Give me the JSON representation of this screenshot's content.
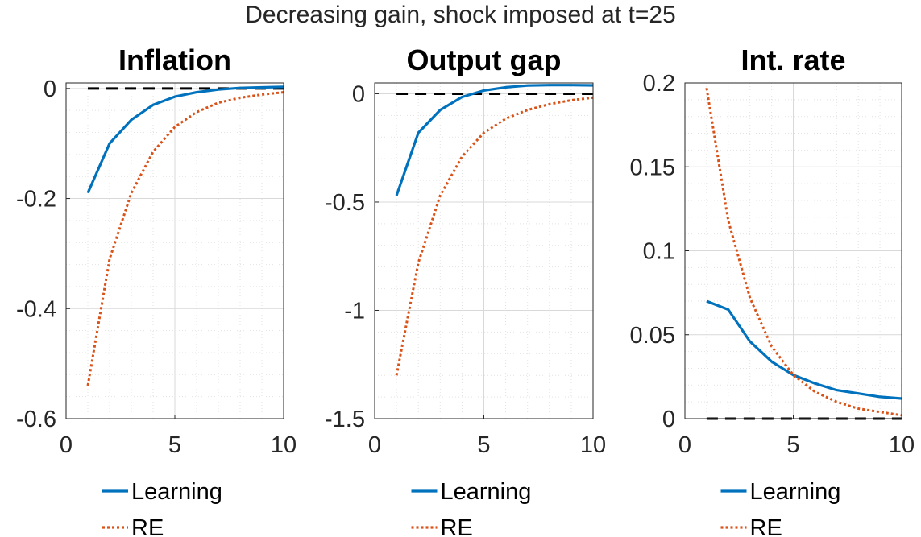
{
  "figure_title": "Decreasing gain, shock imposed at t=25",
  "colors": {
    "learning": "#0072BD",
    "re": "#D95319",
    "zero": "#000000",
    "grid": "#d9d9d9"
  },
  "chart_data": [
    {
      "type": "line",
      "title": "Inflation",
      "xlim": [
        0,
        10
      ],
      "ylim": [
        -0.6,
        0.01
      ],
      "xticks": [
        0,
        5,
        10
      ],
      "xtick_labels": [
        "0",
        "5",
        "10"
      ],
      "yticks": [
        -0.6,
        -0.4,
        -0.2,
        0
      ],
      "ytick_labels": [
        "-0.6",
        "-0.4",
        "-0.2",
        "0"
      ],
      "x": [
        1,
        2,
        3,
        4,
        5,
        6,
        7,
        8,
        9,
        10
      ],
      "series": [
        {
          "name": "Learning",
          "style": "solid",
          "values": [
            -0.19,
            -0.1,
            -0.057,
            -0.03,
            -0.015,
            -0.007,
            -0.002,
            0.001,
            0.002,
            0.003
          ]
        },
        {
          "name": "RE",
          "style": "dotted",
          "values": [
            -0.54,
            -0.31,
            -0.19,
            -0.115,
            -0.07,
            -0.043,
            -0.026,
            -0.017,
            -0.011,
            -0.007
          ]
        }
      ],
      "zero_line": 0,
      "legend": [
        "Learning",
        "RE"
      ],
      "legend_position": "bottom"
    },
    {
      "type": "line",
      "title": "Output gap",
      "xlim": [
        0,
        10
      ],
      "ylim": [
        -1.5,
        0.05
      ],
      "xticks": [
        0,
        5,
        10
      ],
      "xtick_labels": [
        "0",
        "5",
        "10"
      ],
      "yticks": [
        -1.5,
        -1,
        -0.5,
        0
      ],
      "ytick_labels": [
        "-1.5",
        "-1",
        "-0.5",
        "0"
      ],
      "x": [
        1,
        2,
        3,
        4,
        5,
        6,
        7,
        8,
        9,
        10
      ],
      "series": [
        {
          "name": "Learning",
          "style": "solid",
          "values": [
            -0.47,
            -0.18,
            -0.075,
            -0.015,
            0.015,
            0.03,
            0.038,
            0.04,
            0.04,
            0.039
          ]
        },
        {
          "name": "RE",
          "style": "dotted",
          "values": [
            -1.3,
            -0.78,
            -0.47,
            -0.29,
            -0.18,
            -0.115,
            -0.075,
            -0.048,
            -0.03,
            -0.018
          ]
        }
      ],
      "zero_line": 0,
      "legend": [
        "Learning",
        "RE"
      ],
      "legend_position": "bottom"
    },
    {
      "type": "line",
      "title": "Int. rate",
      "xlim": [
        0,
        10
      ],
      "ylim": [
        0,
        0.2
      ],
      "xticks": [
        0,
        5,
        10
      ],
      "xtick_labels": [
        "0",
        "5",
        "10"
      ],
      "yticks": [
        0,
        0.05,
        0.1,
        0.15,
        0.2
      ],
      "ytick_labels": [
        "0",
        "0.05",
        "0.1",
        "0.15",
        "0.2"
      ],
      "x": [
        1,
        2,
        3,
        4,
        5,
        6,
        7,
        8,
        9,
        10
      ],
      "series": [
        {
          "name": "Learning",
          "style": "solid",
          "values": [
            0.07,
            0.065,
            0.046,
            0.034,
            0.026,
            0.021,
            0.017,
            0.015,
            0.013,
            0.012
          ]
        },
        {
          "name": "RE",
          "style": "dotted",
          "values": [
            0.197,
            0.118,
            0.072,
            0.043,
            0.026,
            0.016,
            0.01,
            0.006,
            0.004,
            0.002
          ]
        }
      ],
      "zero_line": 0,
      "legend": [
        "Learning",
        "RE"
      ],
      "legend_position": "bottom"
    }
  ]
}
